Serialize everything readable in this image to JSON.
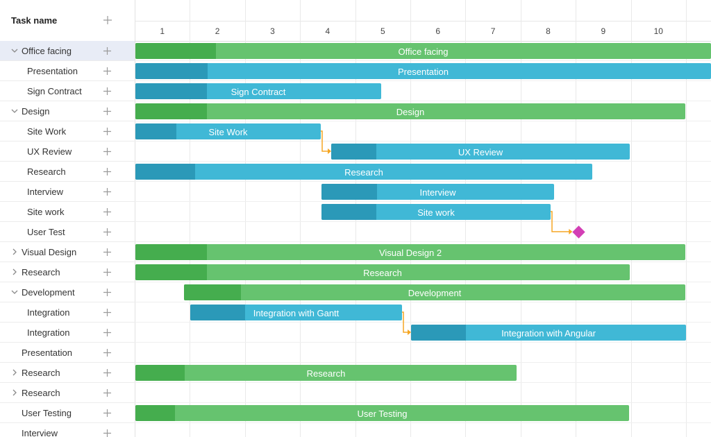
{
  "grid": {
    "header_label": "Task name",
    "rows": [
      {
        "label": "Office facing",
        "expand": "down",
        "selected": true
      },
      {
        "label": "Presentation",
        "expand": "none"
      },
      {
        "label": "Sign Contract",
        "expand": "none"
      },
      {
        "label": "Design",
        "expand": "down"
      },
      {
        "label": "Site Work",
        "expand": "none"
      },
      {
        "label": "UX Review",
        "expand": "none"
      },
      {
        "label": "Research",
        "expand": "none"
      },
      {
        "label": "Interview",
        "expand": "none"
      },
      {
        "label": "Site work",
        "expand": "none"
      },
      {
        "label": "User Test",
        "expand": "none"
      },
      {
        "label": "Visual Design",
        "expand": "right"
      },
      {
        "label": "Research",
        "expand": "right"
      },
      {
        "label": "Development",
        "expand": "down"
      },
      {
        "label": "Integration",
        "expand": "none"
      },
      {
        "label": "Integration",
        "expand": "none"
      },
      {
        "label": "Presentation",
        "expand": "none"
      },
      {
        "label": "Research",
        "expand": "right"
      },
      {
        "label": "Research",
        "expand": "right"
      },
      {
        "label": "User Testing",
        "expand": "none"
      },
      {
        "label": "Interview",
        "expand": "none"
      }
    ]
  },
  "timeline": {
    "days": [
      "1",
      "2",
      "3",
      "4",
      "5",
      "6",
      "7",
      "8",
      "9",
      "10"
    ],
    "bars": [
      {
        "row": 0,
        "label": "Office facing",
        "color": "green",
        "start": 0.0,
        "end": 10.45,
        "progress": 0.14
      },
      {
        "row": 1,
        "label": "Presentation",
        "color": "blue",
        "start": 0.0,
        "end": 10.45,
        "progress": 0.125
      },
      {
        "row": 2,
        "label": "Sign Contract",
        "color": "blue",
        "start": 0.0,
        "end": 4.47,
        "progress": 0.29
      },
      {
        "row": 3,
        "label": "Design",
        "color": "green",
        "start": 0.0,
        "end": 9.99,
        "progress": 0.13
      },
      {
        "row": 4,
        "label": "Site Work",
        "color": "blue",
        "start": 0.0,
        "end": 3.37,
        "progress": 0.22
      },
      {
        "row": 5,
        "label": "UX Review",
        "color": "blue",
        "start": 3.55,
        "end": 8.98,
        "progress": 0.15
      },
      {
        "row": 6,
        "label": "Research",
        "color": "blue",
        "start": 0.0,
        "end": 8.3,
        "progress": 0.13
      },
      {
        "row": 7,
        "label": "Interview",
        "color": "blue",
        "start": 3.37,
        "end": 7.61,
        "progress": 0.24
      },
      {
        "row": 8,
        "label": "Site work",
        "color": "blue",
        "start": 3.37,
        "end": 7.55,
        "progress": 0.24
      },
      {
        "row": 10,
        "label": "Visual Design 2",
        "color": "green",
        "start": 0.0,
        "end": 9.99,
        "progress": 0.13
      },
      {
        "row": 11,
        "label": "Research",
        "color": "green",
        "start": 0.0,
        "end": 8.98,
        "progress": 0.145
      },
      {
        "row": 12,
        "label": "Development",
        "color": "green",
        "start": 0.88,
        "end": 9.99,
        "progress": 0.113
      },
      {
        "row": 13,
        "label": "Integration with Gantt",
        "color": "blue",
        "start": 1.0,
        "end": 4.85,
        "progress": 0.26
      },
      {
        "row": 14,
        "label": "Integration with Angular",
        "color": "blue",
        "start": 5.0,
        "end": 10.0,
        "progress": 0.2
      },
      {
        "row": 16,
        "label": "Research",
        "color": "green",
        "start": 0.0,
        "end": 6.93,
        "progress": 0.13
      },
      {
        "row": 18,
        "label": "User Testing",
        "color": "green",
        "start": 0.0,
        "end": 8.97,
        "progress": 0.08
      }
    ],
    "milestones": [
      {
        "row": 9,
        "label": "User Test",
        "at": 7.8,
        "color": "#d33fb5"
      }
    ],
    "links": [
      {
        "from_row": 4,
        "to_row": 5
      },
      {
        "from_row": 8,
        "to_row": 9
      },
      {
        "from_row": 13,
        "to_row": 14
      }
    ],
    "link_color": "#f5a623"
  },
  "colors": {
    "summary_bar": "#66c36f",
    "summary_progress": "#45ad4e",
    "task_bar": "#40b8d6",
    "task_progress": "#2b99b8",
    "selected_row": "#e8ecf6"
  }
}
